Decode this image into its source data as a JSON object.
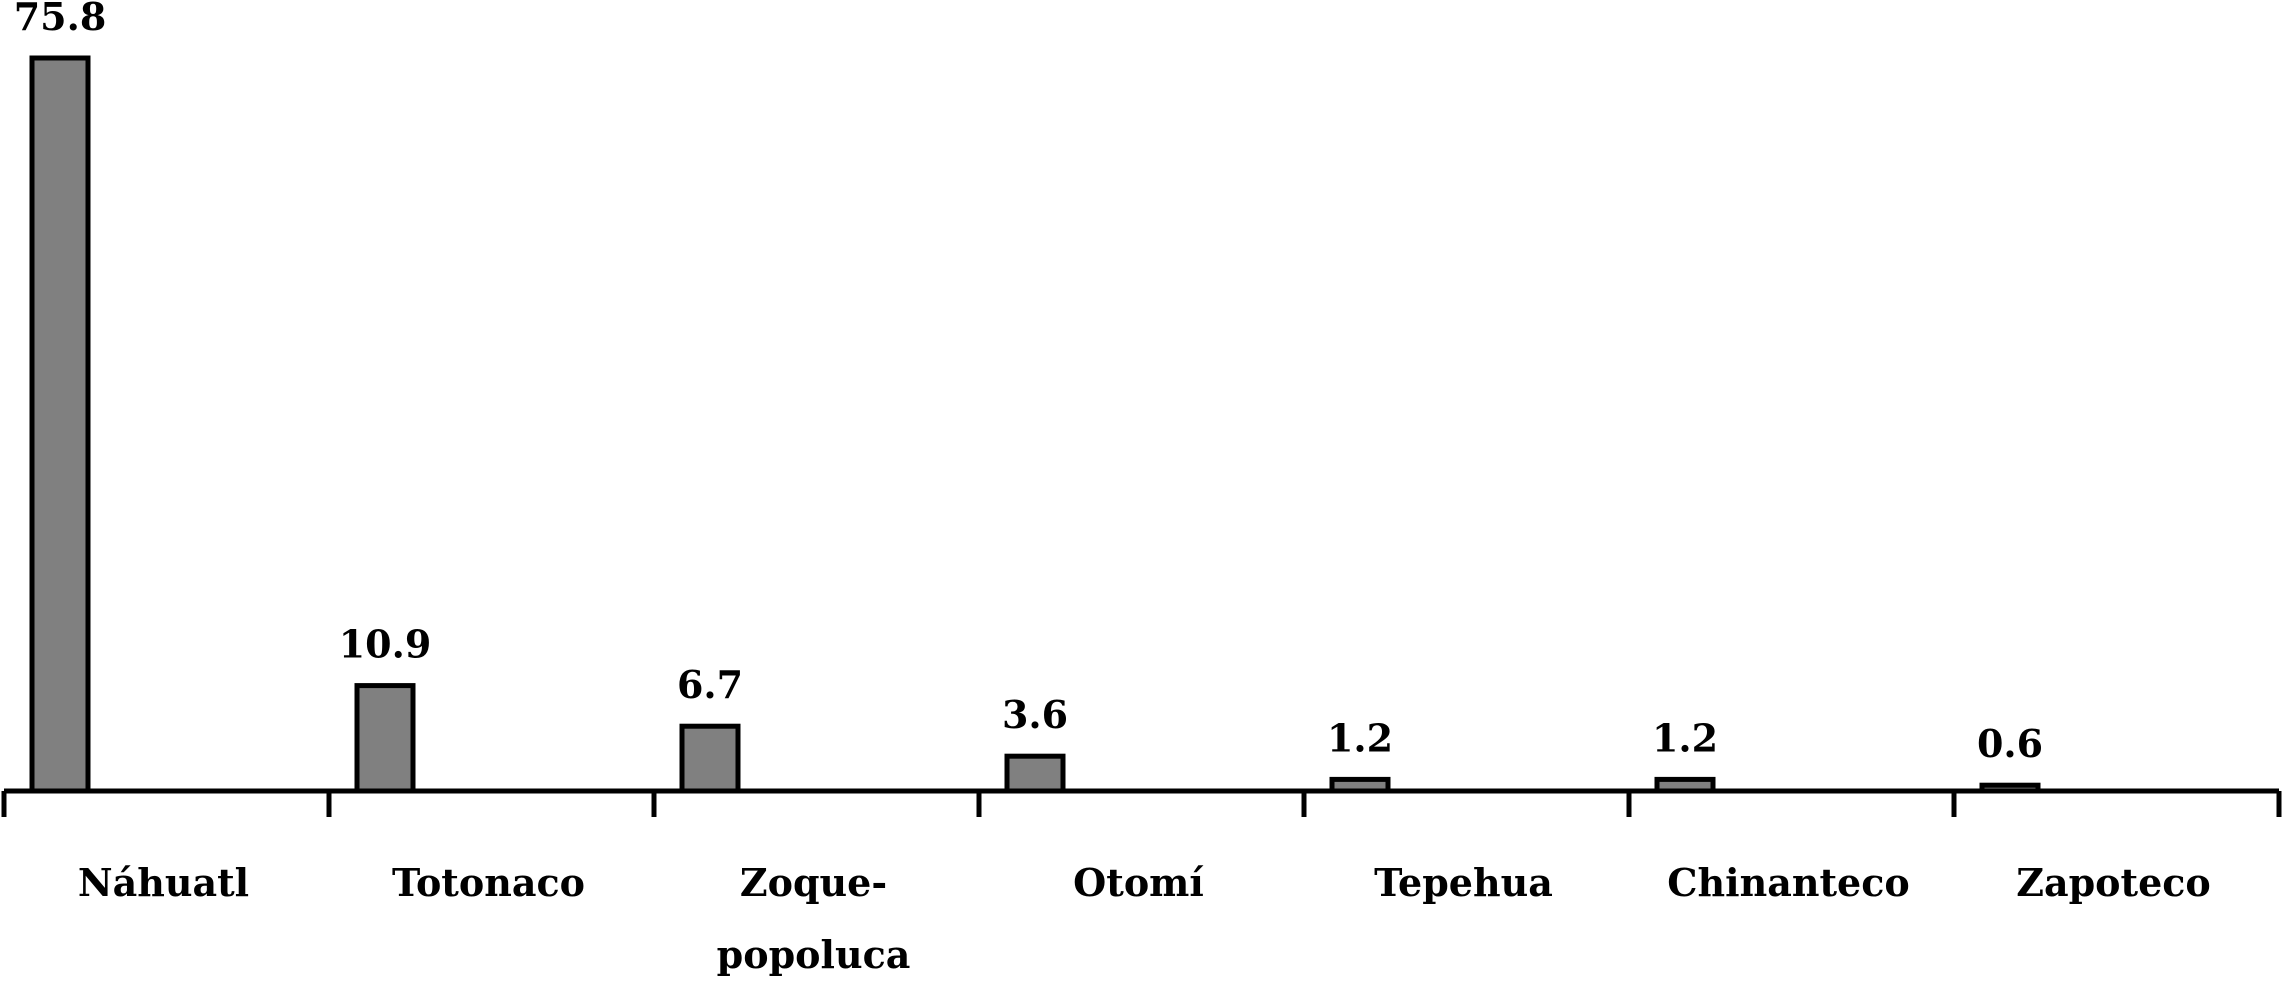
{
  "chart_data": {
    "type": "bar",
    "categories": [
      "Náhuatl",
      "Totonaco",
      "Zoque-\npopoluca",
      "Otomí",
      "Tepehua",
      "Chinanteco",
      "Zapoteco"
    ],
    "category_labels": [
      [
        "Náhuatl"
      ],
      [
        "Totonaco"
      ],
      [
        "Zoque-",
        "popoluca"
      ],
      [
        "Otomí"
      ],
      [
        "Tepehua"
      ],
      [
        "Chinanteco"
      ],
      [
        "Zapoteco"
      ]
    ],
    "values": [
      75.8,
      10.9,
      6.7,
      3.6,
      1.2,
      1.2,
      0.6
    ],
    "value_labels": [
      "75.8",
      "10.9",
      "6.7",
      "3.6",
      "1.2",
      "1.2",
      "0.6"
    ],
    "title": "",
    "xlabel": "",
    "ylabel": "",
    "ylim": [
      0,
      75.8
    ],
    "grid": false,
    "legend": "none",
    "bar_color": "#808080",
    "edge_color": "#000000"
  }
}
